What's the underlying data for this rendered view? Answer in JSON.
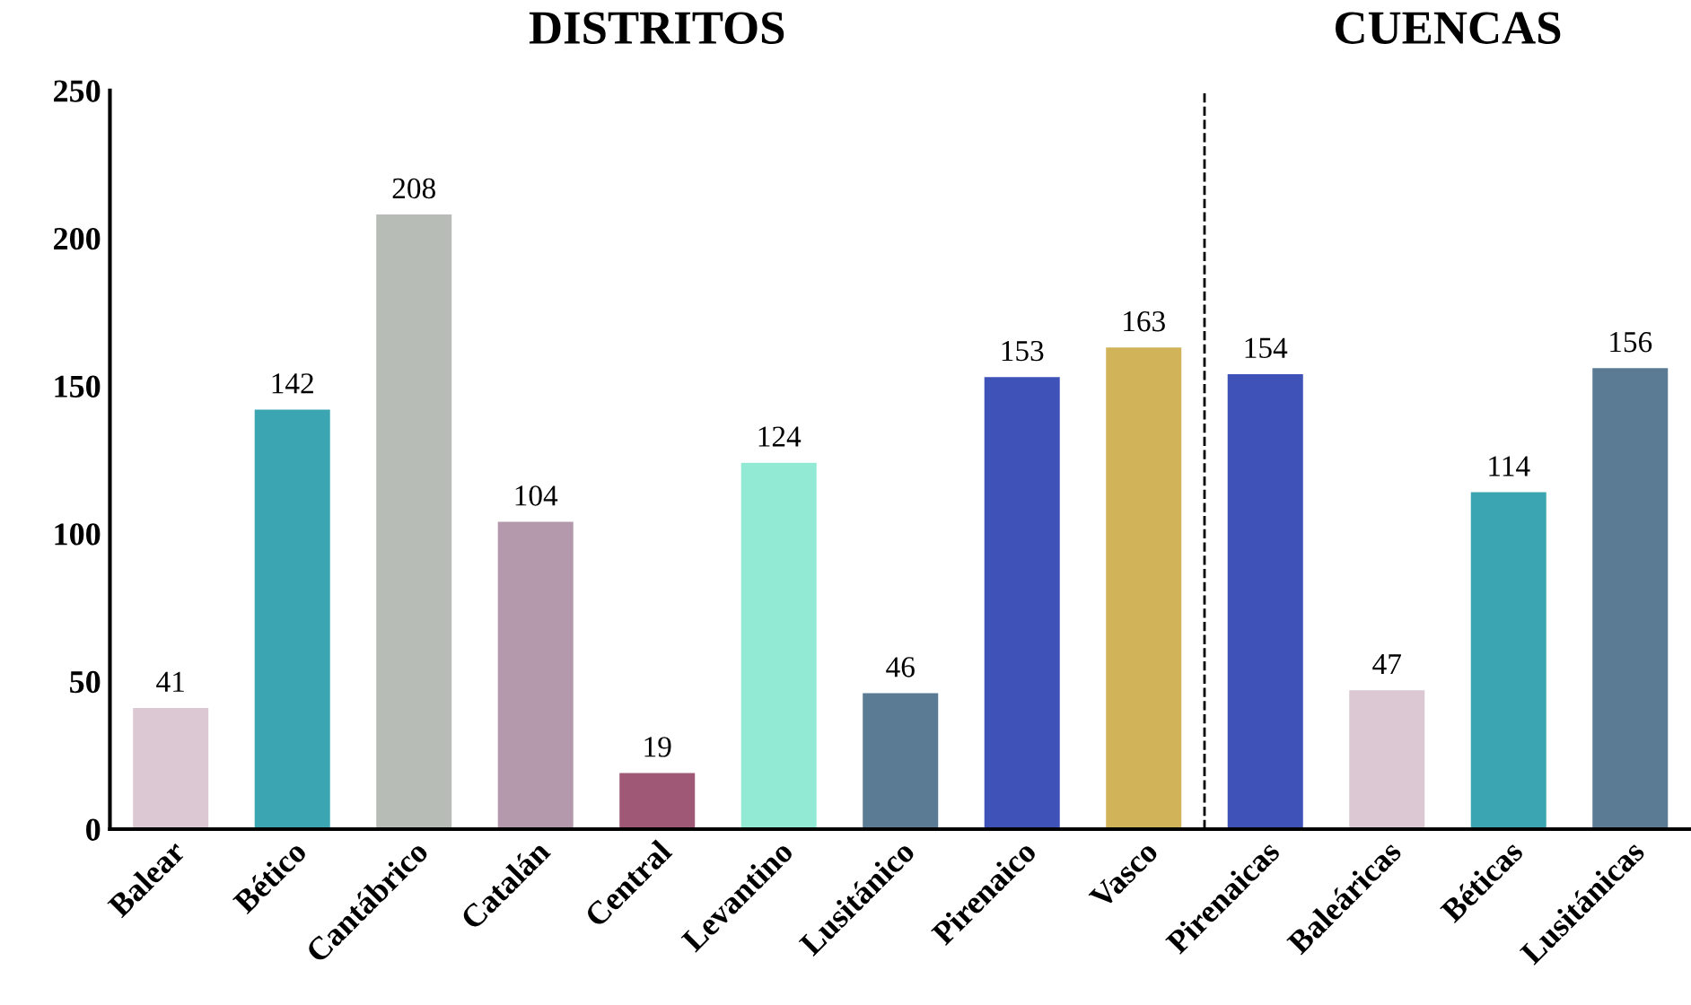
{
  "chart_data": {
    "type": "bar",
    "categories": [
      "Balear",
      "Bético",
      "Cantábrico",
      "Catalán",
      "Central",
      "Levantino",
      "Lusitánico",
      "Pirenaico",
      "Vasco",
      "Pirenaicas",
      "Baleáricas",
      "Béticas",
      "Lusitánicas"
    ],
    "values": [
      41,
      142,
      208,
      104,
      19,
      124,
      46,
      153,
      163,
      154,
      47,
      114,
      156
    ],
    "colors": [
      "#dbc8d3",
      "#3ba6b1",
      "#b7bcb6",
      "#b399ab",
      "#a05877",
      "#92ead5",
      "#5a7b93",
      "#3e52b8",
      "#d1b45a",
      "#3e52b8",
      "#dbc8d3",
      "#3ba6b1",
      "#5a7b93"
    ],
    "ylim": [
      0,
      250
    ],
    "yticks": [
      0,
      50,
      100,
      150,
      200,
      250
    ],
    "data_labels": true,
    "grid": false,
    "annotations": [
      "DISTRITOS",
      "CUENCAS"
    ]
  }
}
